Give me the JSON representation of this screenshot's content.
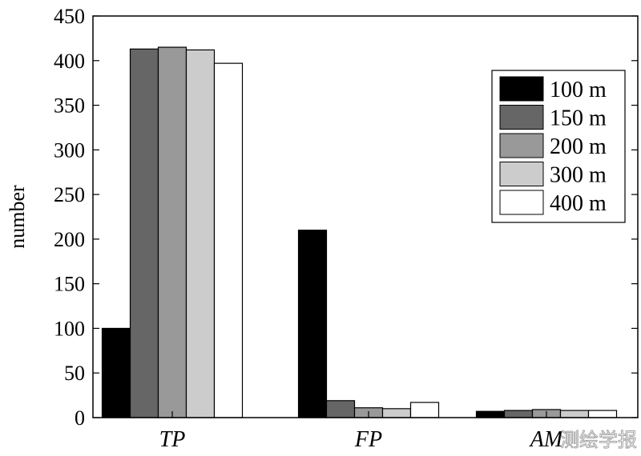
{
  "watermark": "测绘学报",
  "chart_data": {
    "type": "bar",
    "categories": [
      "TP",
      "FP",
      "AM"
    ],
    "ylabel": "number",
    "xlabel": "",
    "ylim": [
      0,
      450
    ],
    "yticks": [
      0,
      50,
      100,
      150,
      200,
      250,
      300,
      350,
      400,
      450
    ],
    "grid": false,
    "legend_position": "top-right",
    "series": [
      {
        "name": "100 m",
        "color": "#000000",
        "values": [
          100,
          210,
          7
        ]
      },
      {
        "name": "150 m",
        "color": "#666666",
        "values": [
          413,
          19,
          8
        ]
      },
      {
        "name": "200 m",
        "color": "#999999",
        "values": [
          415,
          11,
          9
        ]
      },
      {
        "name": "300 m",
        "color": "#cccccc",
        "values": [
          412,
          10,
          8
        ]
      },
      {
        "name": "400 m",
        "color": "#ffffff",
        "values": [
          397,
          17,
          8
        ]
      }
    ]
  }
}
